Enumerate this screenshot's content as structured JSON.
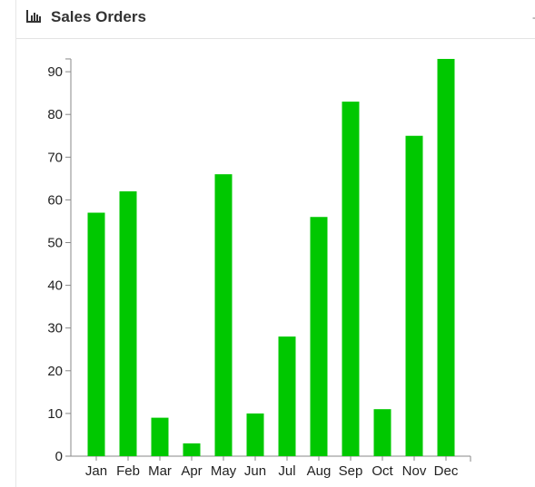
{
  "panel": {
    "title": "Sales Orders",
    "icon": "bar-chart-icon",
    "collapse_label": "-"
  },
  "colors": {
    "bar": "#00c800",
    "axis": "#888888",
    "text": "#333333"
  },
  "chart_data": {
    "type": "bar",
    "title": "",
    "xlabel": "",
    "ylabel": "",
    "categories": [
      "Jan",
      "Feb",
      "Mar",
      "Apr",
      "May",
      "Jun",
      "Jul",
      "Aug",
      "Sep",
      "Oct",
      "Nov",
      "Dec"
    ],
    "values": [
      57,
      62,
      9,
      3,
      66,
      10,
      28,
      56,
      83,
      11,
      75,
      93
    ],
    "ylim": [
      0,
      93
    ],
    "yticks": [
      0,
      10,
      20,
      30,
      40,
      50,
      60,
      70,
      80,
      90
    ],
    "grid": false,
    "legend": "none"
  }
}
